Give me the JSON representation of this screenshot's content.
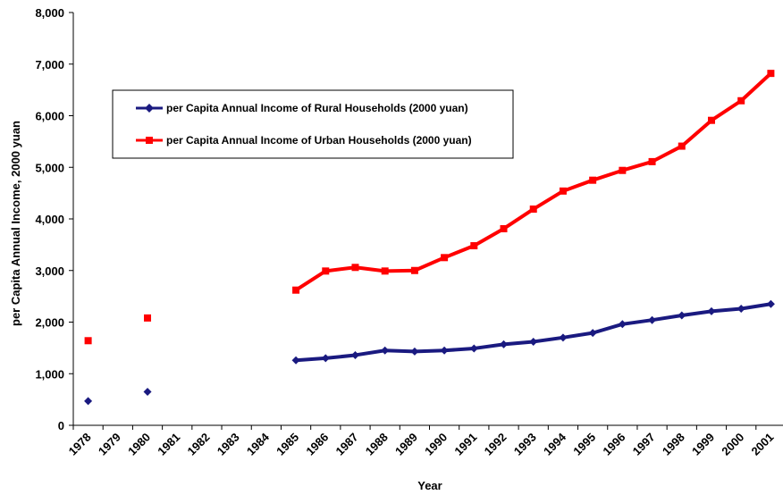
{
  "chart_data": {
    "type": "line",
    "categories": [
      "1978",
      "1979",
      "1980",
      "1981",
      "1982",
      "1983",
      "1984",
      "1985",
      "1986",
      "1987",
      "1988",
      "1989",
      "1990",
      "1991",
      "1992",
      "1993",
      "1994",
      "1995",
      "1996",
      "1997",
      "1998",
      "1999",
      "2000",
      "2001"
    ],
    "xlabel": "Year",
    "ylabel": "per Capita Annual Income, 2000 yuan",
    "ylim": [
      0,
      8000
    ],
    "yticks": [
      0,
      1000,
      2000,
      3000,
      4000,
      5000,
      6000,
      7000,
      8000
    ],
    "ytick_labels": [
      "0",
      "1,000",
      "2,000",
      "3,000",
      "4,000",
      "5,000",
      "6,000",
      "7,000",
      "8,000"
    ],
    "legend_position": "upper-left-inside",
    "grid": false,
    "series": [
      {
        "name": "per Capita Annual Income of Rural Households (2000 yuan)",
        "color": "#1a1a80",
        "marker": "diamond",
        "values": [
          470,
          null,
          650,
          null,
          null,
          null,
          null,
          1260,
          1300,
          1360,
          1450,
          1430,
          1450,
          1490,
          1570,
          1620,
          1700,
          1790,
          1960,
          2040,
          2130,
          2210,
          2260,
          2350
        ]
      },
      {
        "name": "per Capita Annual Income of Urban Households (2000 yuan)",
        "color": "#ff0000",
        "marker": "square",
        "values": [
          1640,
          null,
          2080,
          null,
          null,
          null,
          null,
          2620,
          2990,
          3060,
          2990,
          3000,
          3250,
          3480,
          3810,
          4190,
          4540,
          4750,
          4940,
          5110,
          5410,
          5910,
          6290,
          6820
        ]
      }
    ]
  }
}
